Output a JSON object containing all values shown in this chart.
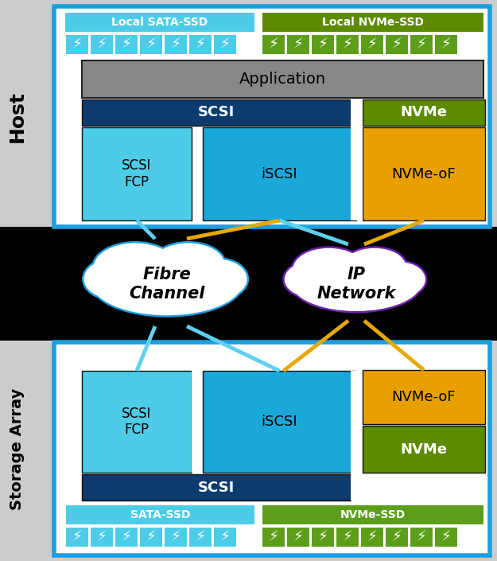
{
  "bg_color": "#cccccc",
  "black_band_color": "#000000",
  "white_box_color": "#ffffff",
  "blue_border_color": "#1b9fe0",
  "dark_blue": "#0d3b6e",
  "cyan_dark": "#1aa8d8",
  "cyan_light": "#4dcce8",
  "green_dark": "#5c8a00",
  "green_bright": "#5c9e1a",
  "orange": "#e8a000",
  "gray_app": "#888888",
  "cloud_blue_border": "#1b9fe0",
  "cloud_purple_border": "#7020b0",
  "line_cyan": "#60d0f0",
  "line_orange": "#e8a800",
  "host_label": "Host",
  "storage_label": "Storage Array",
  "app_label": "Application",
  "scsi_label": "SCSI",
  "scsi_fcp_label": "SCSI\nFCP",
  "iscsi_label": "iSCSI",
  "nvme_label": "NVMe",
  "nvmeof_label": "NVMe-oF",
  "fibre_channel_label": "Fibre\nChannel",
  "ip_network_label": "IP\nNetwork",
  "local_sata_label": "Local SATA-SSD",
  "local_nvme_label": "Local NVMe-SSD",
  "sata_ssd_label": "SATA-SSD",
  "nvme_ssd_label": "NVMe-SSD",
  "fig_w": 6.25,
  "fig_h": 7.05,
  "dpi": 100
}
